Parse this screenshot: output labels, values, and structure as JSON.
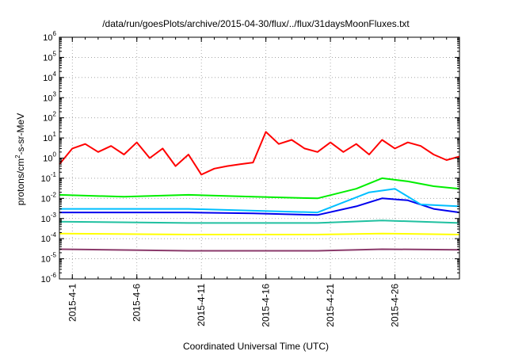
{
  "chart_data": {
    "type": "line",
    "title": "/data/run/goesPlots/archive/2015-04-30/flux/../flux/31daysMoonFluxes.txt",
    "xlabel": "Coordinated Universal Time (UTC)",
    "ylabel": "protons/cm2-s-sr-MeV",
    "ylabel_parts": [
      "protons/cm",
      "2",
      "-s-sr-MeV"
    ],
    "yscale": "log",
    "ylim": [
      1e-06,
      1000000.0
    ],
    "xlim": [
      "2015-03-31",
      "2015-05-01"
    ],
    "grid": true,
    "y_ticks": [
      {
        "base": "10",
        "exp": "-6",
        "value": 1e-06
      },
      {
        "base": "10",
        "exp": "-5",
        "value": 1e-05
      },
      {
        "base": "10",
        "exp": "-4",
        "value": 0.0001
      },
      {
        "base": "10",
        "exp": "-3",
        "value": 0.001
      },
      {
        "base": "10",
        "exp": "-2",
        "value": 0.01
      },
      {
        "base": "10",
        "exp": "-1",
        "value": 0.1
      },
      {
        "base": "10",
        "exp": "0",
        "value": 1.0
      },
      {
        "base": "10",
        "exp": "1",
        "value": 10.0
      },
      {
        "base": "10",
        "exp": "2",
        "value": 100.0
      },
      {
        "base": "10",
        "exp": "3",
        "value": 1000.0
      },
      {
        "base": "10",
        "exp": "4",
        "value": 10000.0
      },
      {
        "base": "10",
        "exp": "5",
        "value": 100000.0
      },
      {
        "base": "10",
        "exp": "6",
        "value": 1000000.0
      }
    ],
    "x_ticks": [
      {
        "label": "2015-4-1",
        "date": "2015-04-01"
      },
      {
        "label": "2015-4-6",
        "date": "2015-04-06"
      },
      {
        "label": "2015-4-11",
        "date": "2015-04-11"
      },
      {
        "label": "2015-4-16",
        "date": "2015-04-16"
      },
      {
        "label": "2015-4-21",
        "date": "2015-04-21"
      },
      {
        "label": "2015-4-26",
        "date": "2015-04-26"
      }
    ],
    "series": [
      {
        "color": "#ff0000",
        "x": [
          "2015-03-31",
          "2015-04-01",
          "2015-04-02",
          "2015-04-03",
          "2015-04-04",
          "2015-04-05",
          "2015-04-06",
          "2015-04-07",
          "2015-04-08",
          "2015-04-09",
          "2015-04-10",
          "2015-04-11",
          "2015-04-12",
          "2015-04-13",
          "2015-04-14",
          "2015-04-15",
          "2015-04-16",
          "2015-04-17",
          "2015-04-18",
          "2015-04-19",
          "2015-04-20",
          "2015-04-21",
          "2015-04-22",
          "2015-04-23",
          "2015-04-24",
          "2015-04-25",
          "2015-04-26",
          "2015-04-27",
          "2015-04-28",
          "2015-04-29",
          "2015-04-30",
          "2015-05-01"
        ],
        "values": [
          0.5,
          3,
          5,
          2,
          4,
          1.5,
          6,
          1,
          3,
          0.4,
          1.5,
          0.15,
          0.3,
          0.4,
          0.5,
          0.6,
          20,
          5,
          8,
          3,
          2,
          6,
          2,
          5,
          1.5,
          8,
          3,
          6,
          4,
          1.5,
          0.8,
          1.2
        ]
      },
      {
        "color": "#00ee00",
        "x": [
          "2015-03-31",
          "2015-04-05",
          "2015-04-10",
          "2015-04-15",
          "2015-04-20",
          "2015-04-23",
          "2015-04-25",
          "2015-04-27",
          "2015-04-29",
          "2015-05-01"
        ],
        "values": [
          0.015,
          0.012,
          0.015,
          0.012,
          0.01,
          0.03,
          0.1,
          0.07,
          0.04,
          0.03
        ]
      },
      {
        "color": "#0000ee",
        "x": [
          "2015-03-31",
          "2015-04-05",
          "2015-04-10",
          "2015-04-15",
          "2015-04-20",
          "2015-04-23",
          "2015-04-25",
          "2015-04-27",
          "2015-04-29",
          "2015-05-01"
        ],
        "values": [
          0.002,
          0.002,
          0.002,
          0.0018,
          0.0015,
          0.004,
          0.01,
          0.008,
          0.003,
          0.002
        ]
      },
      {
        "color": "#00bfff",
        "x": [
          "2015-03-31",
          "2015-04-10",
          "2015-04-20",
          "2015-04-24",
          "2015-04-26",
          "2015-04-28",
          "2015-05-01"
        ],
        "values": [
          0.003,
          0.003,
          0.002,
          0.02,
          0.03,
          0.005,
          0.004
        ]
      },
      {
        "color": "#20c0a0",
        "x": [
          "2015-03-31",
          "2015-04-10",
          "2015-04-20",
          "2015-04-25",
          "2015-05-01"
        ],
        "values": [
          0.0007,
          0.0006,
          0.0006,
          0.0008,
          0.0006
        ]
      },
      {
        "color": "#ffff00",
        "x": [
          "2015-03-31",
          "2015-04-10",
          "2015-04-20",
          "2015-04-25",
          "2015-05-01"
        ],
        "values": [
          0.00018,
          0.00016,
          0.00016,
          0.00018,
          0.00016
        ]
      },
      {
        "color": "#8b3a6b",
        "x": [
          "2015-03-31",
          "2015-04-10",
          "2015-04-20",
          "2015-04-25",
          "2015-05-01"
        ],
        "values": [
          3e-05,
          2.5e-05,
          2.5e-05,
          3e-05,
          2.8e-05
        ]
      }
    ]
  }
}
